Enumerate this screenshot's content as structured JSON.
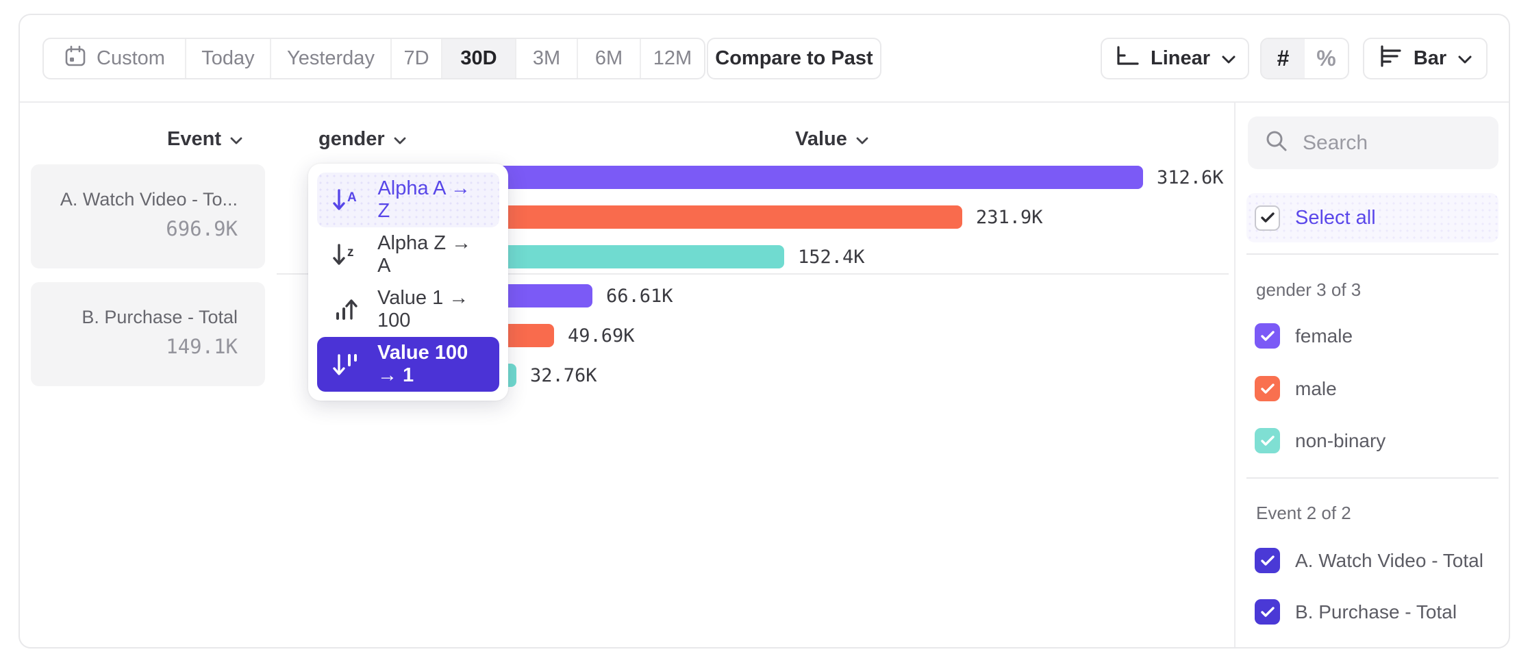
{
  "toolbar": {
    "date_ranges": [
      "Custom",
      "Today",
      "Yesterday",
      "7D",
      "30D",
      "3M",
      "6M",
      "12M"
    ],
    "selected_range": "30D",
    "compare_label": "Compare to Past",
    "scale_label": "Linear",
    "number_symbol": "#",
    "percent_symbol": "%",
    "number_format_selected": "#",
    "chart_type_label": "Bar"
  },
  "columns": {
    "event": "Event",
    "group": "gender",
    "value": "Value"
  },
  "event_list": [
    {
      "name": "A. Watch Video - To...",
      "value": "696.9K"
    },
    {
      "name": "B. Purchase - Total",
      "value": "149.1K"
    }
  ],
  "sort_menu": {
    "items": [
      {
        "label": "Alpha A → Z",
        "icon": "sort-alpha-ascending",
        "state": "highlighted"
      },
      {
        "label": "Alpha Z → A",
        "icon": "sort-alpha-descending",
        "state": "default"
      },
      {
        "label": "Value 1 → 100",
        "icon": "sort-value-ascending",
        "state": "default"
      },
      {
        "label": "Value 100 → 1",
        "icon": "sort-value-descending",
        "state": "selected"
      }
    ]
  },
  "chart_data": {
    "type": "bar",
    "orientation": "horizontal",
    "row_header": "Event",
    "group_header": "gender",
    "value_header": "Value",
    "colors": {
      "female": "#7b5af6",
      "male": "#f96b4d",
      "non-binary": "#70dbd0"
    },
    "groups": [
      {
        "event": "A. Watch Video - Total",
        "total_label": "696.9K",
        "bars": [
          {
            "series": "female",
            "value": 312600,
            "label": "312.6K"
          },
          {
            "series": "male",
            "value": 231900,
            "label": "231.9K"
          },
          {
            "series": "non-binary",
            "value": 152400,
            "label": "152.4K"
          }
        ]
      },
      {
        "event": "B. Purchase - Total",
        "total_label": "149.1K",
        "bars": [
          {
            "series": "female",
            "value": 66610,
            "label": "66.61K"
          },
          {
            "series": "male",
            "value": 49690,
            "label": "49.69K"
          },
          {
            "series": "non-binary",
            "value": 32760,
            "label": "32.76K"
          }
        ]
      }
    ]
  },
  "sidebar": {
    "search_placeholder": "Search",
    "select_all_label": "Select all",
    "groups": [
      {
        "title": "gender 3 of 3",
        "items": [
          {
            "label": "female",
            "color": "#7b5af6",
            "checked": true
          },
          {
            "label": "male",
            "color": "#f9704f",
            "checked": true
          },
          {
            "label": "non-binary",
            "color": "#7fdfd3",
            "checked": true
          }
        ]
      },
      {
        "title": "Event 2 of 2",
        "items": [
          {
            "label": "A. Watch Video - Total",
            "color": "#4a39d6",
            "checked": true
          },
          {
            "label": "B. Purchase - Total",
            "color": "#4a39d6",
            "checked": true
          }
        ]
      }
    ]
  }
}
